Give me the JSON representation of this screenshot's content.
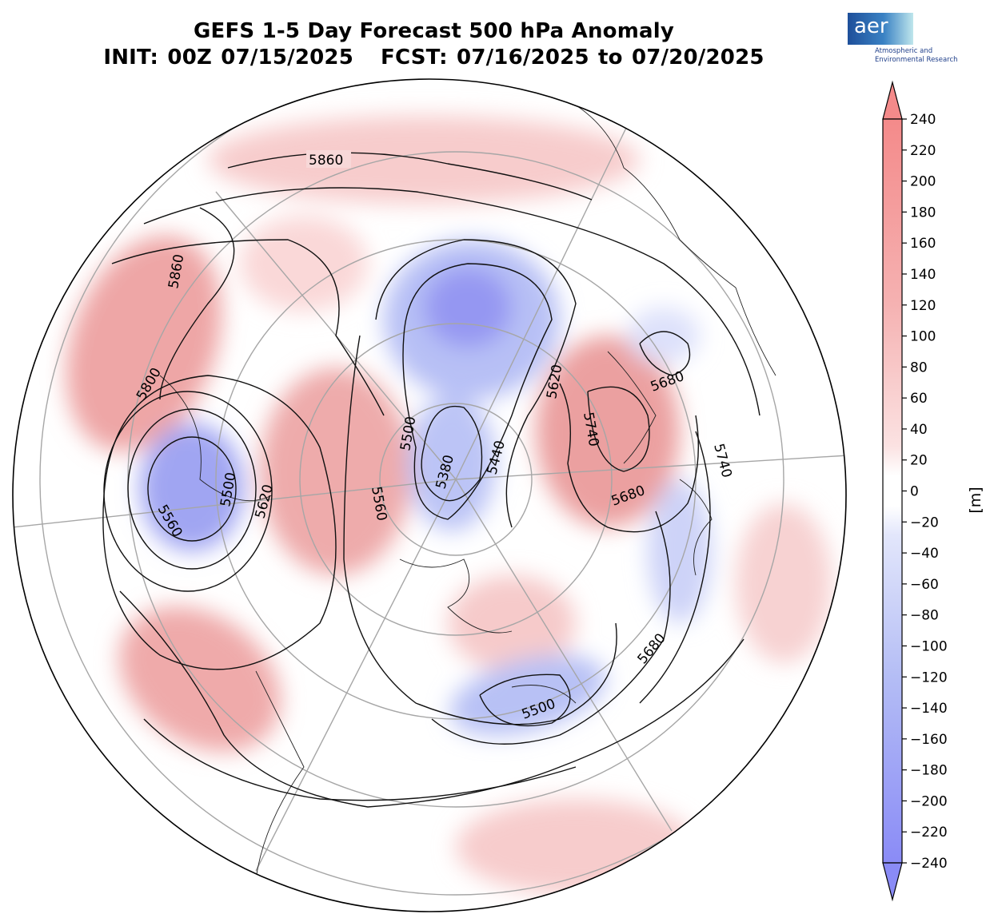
{
  "title": {
    "line1": "GEFS 1-5 Day Forecast 500 hPa Anomaly",
    "init": "INIT: 00Z 07/15/2025",
    "fcst": "FCST: 07/16/2025 to 07/20/2025"
  },
  "logo": {
    "word": "aer",
    "sub1": "Atmospheric and",
    "sub2": "Environmental Research"
  },
  "colorbar": {
    "unit": "[m]",
    "range": [
      -240,
      240
    ],
    "step": 20,
    "ticks": [
      "240",
      "220",
      "200",
      "180",
      "160",
      "140",
      "120",
      "100",
      "80",
      "60",
      "40",
      "20",
      "0",
      "−20",
      "−40",
      "−60",
      "−80",
      "−100",
      "−120",
      "−140",
      "−160",
      "−180",
      "−200",
      "−220",
      "−240"
    ],
    "colors": {
      "negative_max": "#8a8bf6",
      "neutral": "#ffffff",
      "positive_max": "#f48a8a"
    }
  },
  "contour_labels": {
    "l5860a": "5860",
    "l5860b": "5860",
    "l5800": "5800",
    "l5620a": "5620",
    "l5620b": "5620",
    "l5500a": "5500",
    "l5500b": "5500",
    "l5500c": "5500",
    "l5560a": "5560",
    "l5560b": "5560",
    "l5380": "5380",
    "l5440": "5440",
    "l5740a": "5740",
    "l5740b": "5740",
    "l5680a": "5680",
    "l5680b": "5680",
    "l5680c": "5680"
  }
}
